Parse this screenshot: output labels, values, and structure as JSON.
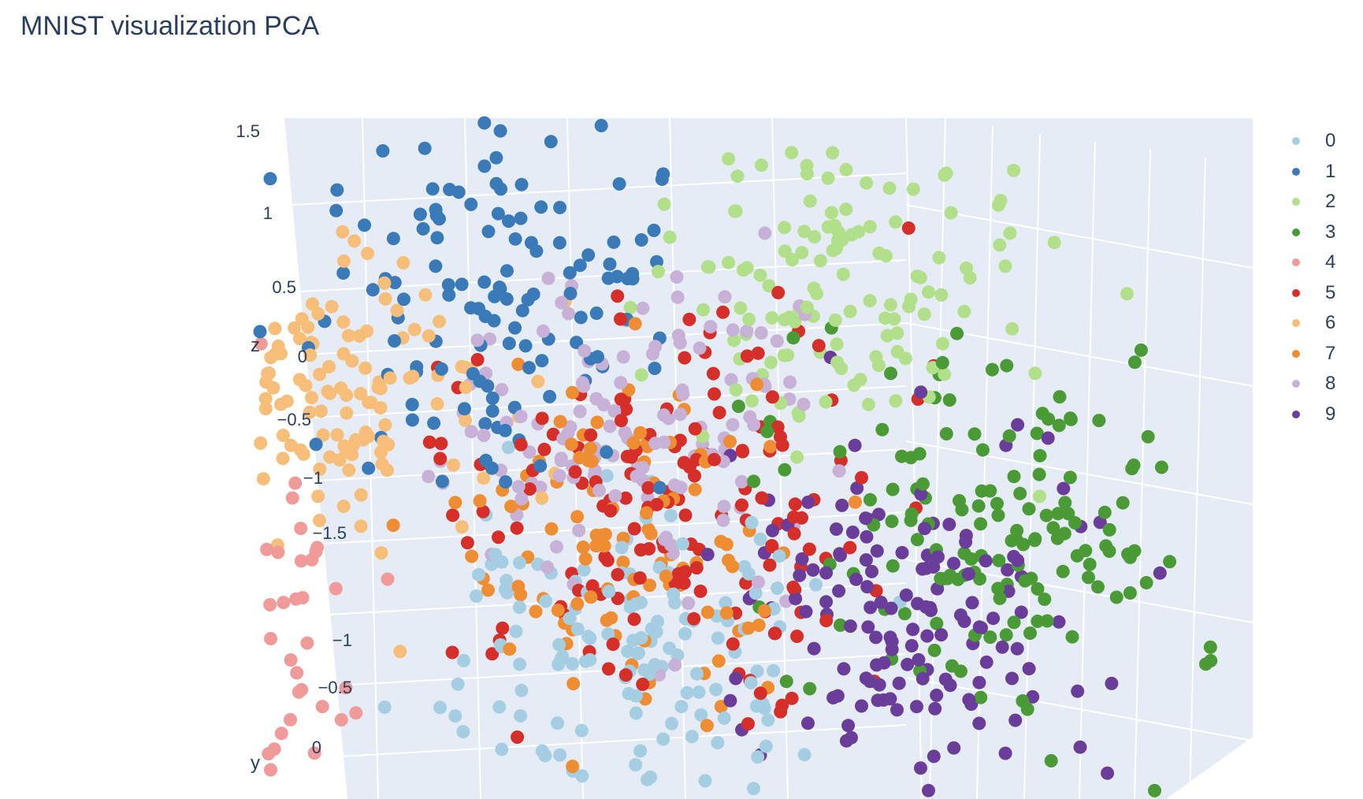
{
  "title": "MNIST visualization PCA",
  "chart_data": {
    "type": "scatter3d",
    "title": "MNIST visualization PCA",
    "axis_titles": {
      "z": "z",
      "y": "y"
    },
    "z_ticks": [
      "1.5",
      "1",
      "0.5",
      "0",
      "−0.5",
      "−1",
      "−1.5"
    ],
    "y_ticks": [
      "−1",
      "−0.5",
      "0"
    ],
    "background_color": "#e5ecf6",
    "grid_color": "#ffffff",
    "legend_position": "right",
    "series": [
      {
        "name": "0",
        "color": "#a6cee3",
        "center": [
          -0.2,
          -0.6,
          -1.7
        ],
        "spread": [
          0.55,
          0.3,
          0.5
        ],
        "count": 150
      },
      {
        "name": "1",
        "color": "#3a7ab8",
        "center": [
          -1.0,
          0.0,
          0.75
        ],
        "spread": [
          0.5,
          0.35,
          0.5
        ],
        "count": 130
      },
      {
        "name": "2",
        "color": "#b2df8a",
        "center": [
          0.8,
          0.3,
          1.05
        ],
        "spread": [
          0.5,
          0.35,
          0.45
        ],
        "count": 130
      },
      {
        "name": "3",
        "color": "#4a9a36",
        "center": [
          1.7,
          0.1,
          -0.6
        ],
        "spread": [
          0.55,
          0.35,
          0.5
        ],
        "count": 150
      },
      {
        "name": "4",
        "color": "#f09a9a",
        "center": [
          -2.6,
          -0.3,
          -1.3
        ],
        "spread": [
          0.45,
          0.35,
          0.55
        ],
        "count": 150
      },
      {
        "name": "5",
        "color": "#d62f2a",
        "center": [
          0.0,
          0.0,
          -0.4
        ],
        "spread": [
          0.6,
          0.35,
          0.55
        ],
        "count": 160
      },
      {
        "name": "6",
        "color": "#f7be79",
        "center": [
          -2.0,
          0.1,
          0.2
        ],
        "spread": [
          0.5,
          0.3,
          0.4
        ],
        "count": 140
      },
      {
        "name": "7",
        "color": "#ef8d33",
        "center": [
          -0.3,
          -0.3,
          -0.9
        ],
        "spread": [
          0.45,
          0.3,
          0.5
        ],
        "count": 110
      },
      {
        "name": "8",
        "color": "#c7b1d6",
        "center": [
          -0.3,
          0.1,
          0.0
        ],
        "spread": [
          0.55,
          0.35,
          0.45
        ],
        "count": 130
      },
      {
        "name": "9",
        "color": "#6a3d9a",
        "center": [
          1.3,
          -0.3,
          -1.4
        ],
        "spread": [
          0.55,
          0.3,
          0.45
        ],
        "count": 150
      }
    ]
  }
}
